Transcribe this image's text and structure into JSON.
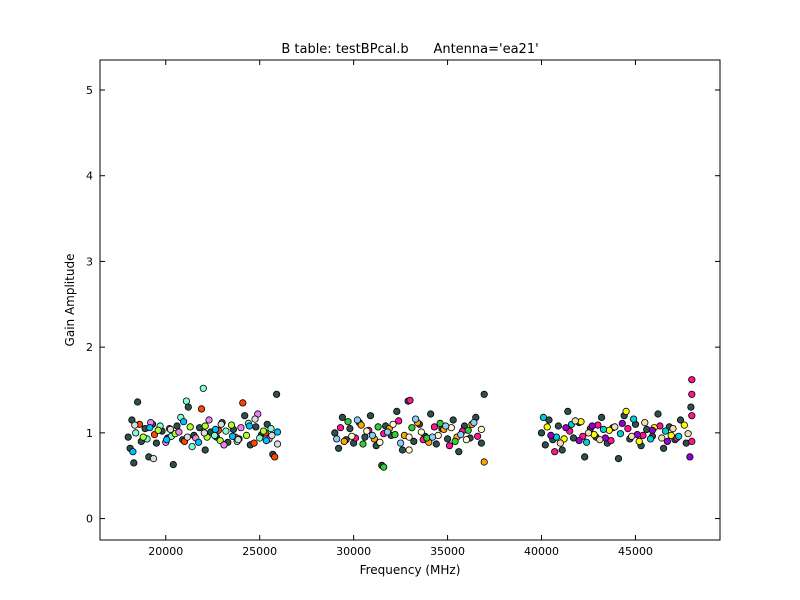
{
  "chart_data": {
    "type": "scatter",
    "title": "B table: testBPcal.b      Antenna='ea21'",
    "xlabel": "Frequency (MHz)",
    "ylabel": "Gain Amplitude",
    "xlim": [
      16500,
      49500
    ],
    "ylim": [
      -0.25,
      5.35
    ],
    "xticks": [
      20000,
      25000,
      30000,
      35000,
      40000,
      45000
    ],
    "yticks": [
      0,
      1,
      2,
      3,
      4,
      5
    ],
    "grid": false,
    "legend": "none",
    "marker": "circle",
    "marker_edge_color": "#000000",
    "series": [
      {
        "color": "#2f4f4f",
        "points": [
          [
            18000,
            0.95
          ],
          [
            18100,
            0.82
          ],
          [
            18200,
            1.15
          ],
          [
            18300,
            0.65
          ],
          [
            18500,
            1.36
          ],
          [
            18700,
            0.9
          ],
          [
            18900,
            1.05
          ],
          [
            19100,
            0.72
          ],
          [
            19300,
            1.1
          ],
          [
            19500,
            0.88
          ],
          [
            19800,
            1.02
          ],
          [
            20100,
            0.94
          ],
          [
            20400,
            0.63
          ],
          [
            20600,
            1.08
          ],
          [
            20900,
            0.92
          ],
          [
            21200,
            1.3
          ],
          [
            21500,
            0.97
          ],
          [
            21800,
            1.06
          ],
          [
            22100,
            0.8
          ],
          [
            22400,
            1.01
          ],
          [
            22700,
            0.95
          ],
          [
            23000,
            1.12
          ],
          [
            23300,
            0.89
          ],
          [
            23600,
            1.04
          ],
          [
            23900,
            0.93
          ],
          [
            24200,
            1.2
          ],
          [
            24500,
            0.86
          ],
          [
            24800,
            1.07
          ],
          [
            25100,
            0.98
          ],
          [
            25400,
            1.1
          ],
          [
            25700,
            0.75
          ],
          [
            25900,
            1.45
          ]
        ]
      },
      {
        "color": "#7fffd4",
        "points": [
          [
            18400,
            1.0
          ],
          [
            19000,
            0.93
          ],
          [
            19700,
            1.08
          ],
          [
            20300,
            0.96
          ],
          [
            20800,
            1.18
          ],
          [
            21100,
            1.37
          ],
          [
            21400,
            0.84
          ],
          [
            22000,
            1.52
          ],
          [
            22600,
            0.97
          ],
          [
            23200,
            1.02
          ],
          [
            23800,
            0.9
          ],
          [
            24400,
            1.11
          ],
          [
            25000,
            0.94
          ],
          [
            25600,
            1.05
          ]
        ]
      },
      {
        "color": "#ff4500",
        "points": [
          [
            18600,
            1.1
          ],
          [
            19400,
            0.98
          ],
          [
            20200,
            1.05
          ],
          [
            21000,
            0.9
          ],
          [
            21900,
            1.28
          ],
          [
            22800,
            1.03
          ],
          [
            23700,
            0.95
          ],
          [
            24100,
            1.35
          ],
          [
            24700,
            0.88
          ],
          [
            25300,
            1.0
          ],
          [
            25800,
            0.72
          ]
        ]
      },
      {
        "color": "#adff2f",
        "points": [
          [
            18800,
            0.95
          ],
          [
            19600,
            1.03
          ],
          [
            20500,
            0.99
          ],
          [
            21300,
            1.07
          ],
          [
            22100,
            1.08
          ],
          [
            22200,
            0.95
          ],
          [
            22900,
            0.91
          ],
          [
            23500,
            1.09
          ],
          [
            24300,
            0.97
          ],
          [
            25200,
            1.02
          ]
        ]
      },
      {
        "color": "#ee82ee",
        "points": [
          [
            19200,
            1.12
          ],
          [
            20000,
            0.89
          ],
          [
            20700,
            1.01
          ],
          [
            21600,
            0.94
          ],
          [
            22300,
            1.15
          ],
          [
            23100,
            0.86
          ],
          [
            24000,
            1.06
          ],
          [
            24900,
            1.22
          ],
          [
            25500,
            0.93
          ]
        ]
      },
      {
        "color": "#00bfff",
        "points": [
          [
            18250,
            0.78
          ],
          [
            19150,
            1.06
          ],
          [
            20050,
            0.92
          ],
          [
            20950,
            1.13
          ],
          [
            21750,
            0.89
          ],
          [
            22650,
            1.04
          ],
          [
            23550,
            0.96
          ],
          [
            24450,
            1.08
          ],
          [
            25350,
            0.91
          ],
          [
            25950,
            1.01
          ]
        ]
      },
      {
        "color": "#dcdcdc",
        "points": [
          [
            18350,
            1.09
          ],
          [
            19350,
            0.7
          ],
          [
            20250,
            1.04
          ],
          [
            21150,
            0.95
          ],
          [
            22050,
            1.0
          ],
          [
            22950,
            1.1
          ],
          [
            23850,
            0.92
          ],
          [
            24750,
            1.16
          ],
          [
            25650,
            0.97
          ],
          [
            25950,
            0.87
          ]
        ]
      },
      {
        "color": "#2f4f4f",
        "points": [
          [
            29000,
            1.0
          ],
          [
            29200,
            0.82
          ],
          [
            29400,
            1.18
          ],
          [
            29600,
            0.92
          ],
          [
            29800,
            1.05
          ],
          [
            30000,
            0.88
          ],
          [
            30300,
            1.12
          ],
          [
            30600,
            0.95
          ],
          [
            30900,
            1.2
          ],
          [
            31200,
            0.85
          ],
          [
            31500,
            0.62
          ],
          [
            31700,
            1.08
          ],
          [
            32000,
            0.97
          ],
          [
            32300,
            1.25
          ],
          [
            32600,
            0.8
          ],
          [
            32900,
            1.37
          ],
          [
            33200,
            0.9
          ],
          [
            33500,
            1.1
          ],
          [
            33800,
            0.96
          ],
          [
            34100,
            1.22
          ],
          [
            34400,
            0.87
          ],
          [
            34700,
            1.05
          ],
          [
            35000,
            0.93
          ],
          [
            35300,
            1.15
          ],
          [
            35600,
            0.78
          ],
          [
            35900,
            1.08
          ],
          [
            36200,
            0.94
          ],
          [
            36500,
            1.18
          ],
          [
            36800,
            0.88
          ],
          [
            36950,
            1.45
          ]
        ]
      },
      {
        "color": "#ff1493",
        "points": [
          [
            29300,
            1.06
          ],
          [
            30100,
            0.94
          ],
          [
            30800,
            1.03
          ],
          [
            31600,
            0.99
          ],
          [
            32400,
            1.14
          ],
          [
            33000,
            1.38
          ],
          [
            33700,
            0.92
          ],
          [
            34300,
            1.07
          ],
          [
            35100,
            0.85
          ],
          [
            35800,
            1.02
          ],
          [
            36600,
            0.96
          ]
        ]
      },
      {
        "color": "#ffa500",
        "points": [
          [
            29500,
            0.9
          ],
          [
            30400,
            1.09
          ],
          [
            31100,
            0.93
          ],
          [
            31900,
            1.05
          ],
          [
            32700,
            0.97
          ],
          [
            33400,
            1.12
          ],
          [
            34000,
            0.89
          ],
          [
            34800,
            1.04
          ],
          [
            35500,
            0.95
          ],
          [
            36300,
            1.1
          ],
          [
            36950,
            0.66
          ]
        ]
      },
      {
        "color": "#32cd32",
        "points": [
          [
            29700,
            1.13
          ],
          [
            30500,
            0.87
          ],
          [
            31300,
            1.07
          ],
          [
            31600,
            0.6
          ],
          [
            32200,
            0.98
          ],
          [
            33100,
            1.06
          ],
          [
            33900,
            0.94
          ],
          [
            34600,
            1.11
          ],
          [
            35400,
            0.9
          ],
          [
            36100,
            1.03
          ]
        ]
      },
      {
        "color": "#fffacd",
        "points": [
          [
            29900,
            0.96
          ],
          [
            30700,
            1.02
          ],
          [
            31400,
            0.89
          ],
          [
            32100,
            1.1
          ],
          [
            32950,
            0.8
          ],
          [
            32950,
            0.95
          ],
          [
            33600,
            1.01
          ],
          [
            34500,
            0.97
          ],
          [
            35200,
            1.06
          ],
          [
            36000,
            0.92
          ],
          [
            36800,
            1.04
          ]
        ]
      },
      {
        "color": "#87cefa",
        "points": [
          [
            29100,
            0.93
          ],
          [
            30200,
            1.15
          ],
          [
            31000,
            0.97
          ],
          [
            31800,
            1.01
          ],
          [
            32500,
            0.88
          ],
          [
            33300,
            1.16
          ],
          [
            34200,
            0.95
          ],
          [
            34900,
            1.08
          ],
          [
            35700,
            0.98
          ],
          [
            36400,
            1.12
          ]
        ]
      },
      {
        "color": "#2f4f4f",
        "points": [
          [
            40000,
            1.0
          ],
          [
            40200,
            0.86
          ],
          [
            40400,
            1.15
          ],
          [
            40600,
            0.92
          ],
          [
            40900,
            1.08
          ],
          [
            41100,
            0.8
          ],
          [
            41400,
            1.25
          ],
          [
            41700,
            0.94
          ],
          [
            42000,
            1.12
          ],
          [
            42300,
            0.72
          ],
          [
            42600,
            1.05
          ],
          [
            42900,
            0.95
          ],
          [
            43200,
            1.18
          ],
          [
            43500,
            0.88
          ],
          [
            43800,
            1.06
          ],
          [
            44100,
            0.7
          ],
          [
            44400,
            1.2
          ],
          [
            44700,
            0.93
          ],
          [
            45000,
            1.1
          ],
          [
            45300,
            0.85
          ],
          [
            45600,
            1.04
          ],
          [
            45900,
            0.96
          ],
          [
            46200,
            1.22
          ],
          [
            46500,
            0.82
          ],
          [
            46800,
            1.07
          ],
          [
            47100,
            0.92
          ],
          [
            47400,
            1.15
          ],
          [
            47700,
            0.88
          ],
          [
            47950,
            1.3
          ]
        ]
      },
      {
        "color": "#ff1493",
        "points": [
          [
            40700,
            0.78
          ],
          [
            41500,
            1.02
          ],
          [
            42200,
            0.96
          ],
          [
            43000,
            1.09
          ],
          [
            43700,
            0.91
          ],
          [
            44600,
            1.05
          ],
          [
            45400,
            0.97
          ],
          [
            46300,
            1.08
          ],
          [
            47200,
            0.94
          ],
          [
            48000,
            1.62
          ],
          [
            48000,
            1.45
          ],
          [
            48000,
            1.2
          ],
          [
            48000,
            0.9
          ]
        ]
      },
      {
        "color": "#ffff00",
        "points": [
          [
            40300,
            1.07
          ],
          [
            41200,
            0.93
          ],
          [
            42100,
            1.13
          ],
          [
            42800,
            0.98
          ],
          [
            43600,
            1.03
          ],
          [
            44500,
            1.25
          ],
          [
            45200,
            0.9
          ],
          [
            46000,
            1.06
          ],
          [
            46900,
            0.97
          ],
          [
            47600,
            1.09
          ]
        ]
      },
      {
        "color": "#00ced1",
        "points": [
          [
            40100,
            1.18
          ],
          [
            40800,
            0.95
          ],
          [
            41600,
            1.1
          ],
          [
            42400,
            0.89
          ],
          [
            43300,
            1.04
          ],
          [
            44200,
            0.99
          ],
          [
            44900,
            1.16
          ],
          [
            45800,
            0.93
          ],
          [
            46600,
            1.02
          ],
          [
            47300,
            0.96
          ]
        ]
      },
      {
        "color": "#9400d3",
        "points": [
          [
            40500,
            0.97
          ],
          [
            41300,
            1.06
          ],
          [
            42000,
            0.91
          ],
          [
            42700,
            1.08
          ],
          [
            43400,
            0.94
          ],
          [
            44300,
            1.11
          ],
          [
            45100,
            0.98
          ],
          [
            45900,
            1.03
          ],
          [
            46700,
            0.9
          ],
          [
            47900,
            0.72
          ]
        ]
      },
      {
        "color": "#f5deb3",
        "points": [
          [
            41000,
            0.88
          ],
          [
            41800,
            1.14
          ],
          [
            42500,
            1.0
          ],
          [
            43100,
            0.92
          ],
          [
            43900,
            1.07
          ],
          [
            44800,
            0.96
          ],
          [
            45500,
            1.12
          ],
          [
            46400,
            0.94
          ],
          [
            47000,
            1.05
          ],
          [
            47800,
            0.99
          ]
        ]
      }
    ]
  }
}
